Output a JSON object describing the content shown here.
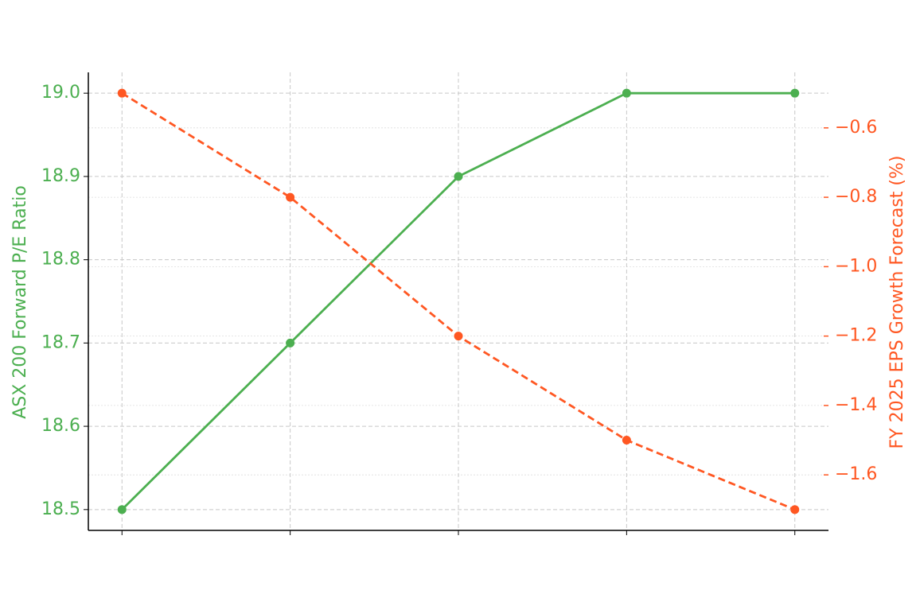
{
  "chart_data": {
    "type": "line",
    "categories": [
      null,
      null,
      null,
      null,
      null
    ],
    "y_label": "ASX 200 Forward P/E Ratio",
    "y2_label": "FY 2025 EPS Growth Forecast (%)",
    "series": [
      {
        "name": "ASX 200 Forward P/E Ratio",
        "color": "#4caf50",
        "values": [
          18.5,
          18.7,
          18.9,
          19.0,
          19.0
        ],
        "dashed": false
      },
      {
        "name": "FY 2025 EPS Growth Forecast (%)",
        "color": "#ff5722",
        "values": [
          -0.5,
          -0.8,
          -1.2,
          -1.5,
          -1.7
        ],
        "axis": "y2",
        "dashed": true
      }
    ],
    "ylim": [
      18.475,
      19.025
    ],
    "yticks": [
      18.5,
      18.6,
      18.7,
      18.8,
      18.9,
      {
        "value": 19.0,
        "label": "19.0"
      }
    ],
    "y2lim": [
      -1.76,
      -0.44
    ],
    "y2ticks": [
      {
        "value": -1.6,
        "label": "−1.6"
      },
      {
        "value": -1.4,
        "label": "−1.4"
      },
      {
        "value": -1.2,
        "label": "−1.2"
      },
      {
        "value": -1.0,
        "label": "−1.0"
      },
      {
        "value": -0.8,
        "label": "−0.8"
      },
      {
        "value": -0.6,
        "label": "−0.6"
      }
    ],
    "grid": true
  }
}
